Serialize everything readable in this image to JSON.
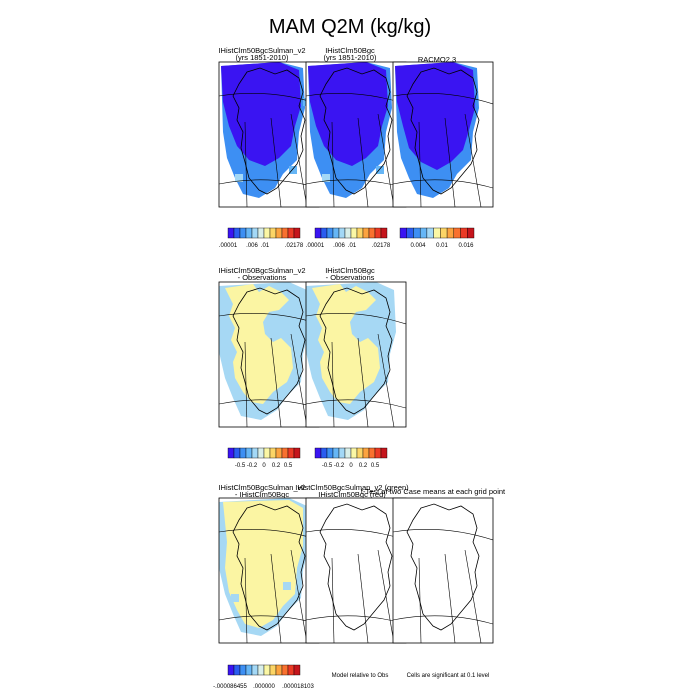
{
  "title": "MAM Q2M (kg/kg)",
  "colors": {
    "abs_scale": [
      "#3a14f2",
      "#2a5cf0",
      "#3d8ff3",
      "#66b6f6",
      "#a3d8f6",
      "#d9efe9",
      "#fbf7a5",
      "#fcd566",
      "#fca33f",
      "#f9712f",
      "#eb3a25",
      "#c5151c"
    ],
    "racmo_scale": [
      "#3a14f2",
      "#2a5cf0",
      "#3d8ff3",
      "#66b6f6",
      "#a3d8f6",
      "#fbf7a5",
      "#fcd566",
      "#fca33f",
      "#f9712f",
      "#eb3a25",
      "#c5151c"
    ],
    "diff_scale": [
      "#3a14f2",
      "#2a5cf0",
      "#3d8ff3",
      "#66b6f6",
      "#a3d8f6",
      "#d9efe9",
      "#fbf7a5",
      "#fcd566",
      "#fca33f",
      "#f9712f",
      "#eb3a25",
      "#c5151c"
    ],
    "deep_blue": "#3a14f2",
    "mid_blue": "#3d8ff3",
    "light_blue": "#a6d8f4",
    "light_yellow": "#fbf5a3",
    "land_fill": "#fbf5a3"
  },
  "row1": {
    "panels": [
      {
        "title": "IHistClm50BgcSulman_v2",
        "subtitle": "(yrs 1851-2010)"
      },
      {
        "title": "IHistClm50Bgc",
        "subtitle": "(yrs 1851-2010)"
      },
      {
        "title": "RACMO2.3",
        "subtitle": ""
      }
    ],
    "colorbars": [
      {
        "labels": [
          ".00001",
          ".006",
          ".01",
          ".02178"
        ]
      },
      {
        "labels": [
          ".00001",
          ".006",
          ".01",
          ".02178"
        ]
      },
      {
        "labels": [
          "0.004",
          "0.01",
          "0.016"
        ]
      }
    ]
  },
  "row2": {
    "panels": [
      {
        "title": "IHistClm50BgcSulman_v2",
        "subtitle": "- Observations"
      },
      {
        "title": "IHistClm50Bgc",
        "subtitle": "- Observations"
      }
    ],
    "colorbars": [
      {
        "labels": [
          "-0.5",
          "-0.2",
          "0",
          "0.2",
          "0.5"
        ]
      },
      {
        "labels": [
          "-0.5",
          "-0.2",
          "0",
          "0.2",
          "0.5"
        ]
      }
    ]
  },
  "row3": {
    "panels": [
      {
        "title": "IHistClm50BgcSulman_v2",
        "subtitle": "- IHistClm50Bgc"
      },
      {
        "title": "IHistClm50BgcSulman_v2 (green)",
        "subtitle": "IHistClm50Bgc (red)"
      },
      {
        "title": "t-Test of two Case means at each grid point",
        "subtitle": ""
      }
    ],
    "colorbar": {
      "labels": [
        "-.000086455",
        ".000000",
        ".000018103"
      ]
    },
    "notes": [
      "Model relative to Obs",
      "Cells are significant at 0.1 level"
    ]
  },
  "chart_data": {
    "type": "heatmap",
    "title": "MAM Q2M (kg/kg)",
    "panels": [
      {
        "row": 1,
        "name": "IHistClm50BgcSulman_v2 (yrs 1851-2010)",
        "scale_labels": [
          ".00001",
          ".006",
          ".01",
          ".02178"
        ],
        "dominant_level": "lowest (deep blue)",
        "coastal_level": "low (blue)"
      },
      {
        "row": 1,
        "name": "IHistClm50Bgc (yrs 1851-2010)",
        "scale_labels": [
          ".00001",
          ".006",
          ".01",
          ".02178"
        ],
        "dominant_level": "lowest (deep blue)",
        "coastal_level": "low (blue)"
      },
      {
        "row": 1,
        "name": "RACMO2.3",
        "scale_labels": [
          "0.004",
          "0.01",
          "0.016"
        ],
        "dominant_level": "lowest (deep blue)",
        "coastal_level": "low (blue)"
      },
      {
        "row": 2,
        "name": "IHistClm50BgcSulman_v2 - Observations",
        "scale_labels": [
          "-0.5",
          "-0.2",
          "0",
          "0.2",
          "0.5"
        ],
        "dominant_level": "slightly positive (light yellow)",
        "coastal_level": "slightly negative (light blue)"
      },
      {
        "row": 2,
        "name": "IHistClm50Bgc - Observations",
        "scale_labels": [
          "-0.5",
          "-0.2",
          "0",
          "0.2",
          "0.5"
        ],
        "dominant_level": "slightly positive (light yellow)",
        "coastal_level": "slightly negative (light blue)"
      },
      {
        "row": 3,
        "name": "IHistClm50BgcSulman_v2 - IHistClm50Bgc",
        "scale_labels": [
          "-.000086455",
          ".000000",
          ".000018103"
        ],
        "dominant_level": "near zero positive (light yellow)",
        "coastal_level": "near zero negative (light blue)"
      },
      {
        "row": 3,
        "name": "IHistClm50BgcSulman_v2 (green) IHistClm50Bgc (red)",
        "dominant_level": "outline only"
      },
      {
        "row": 3,
        "name": "t-Test of two Case means at each grid point",
        "dominant_level": "outline only"
      }
    ]
  }
}
